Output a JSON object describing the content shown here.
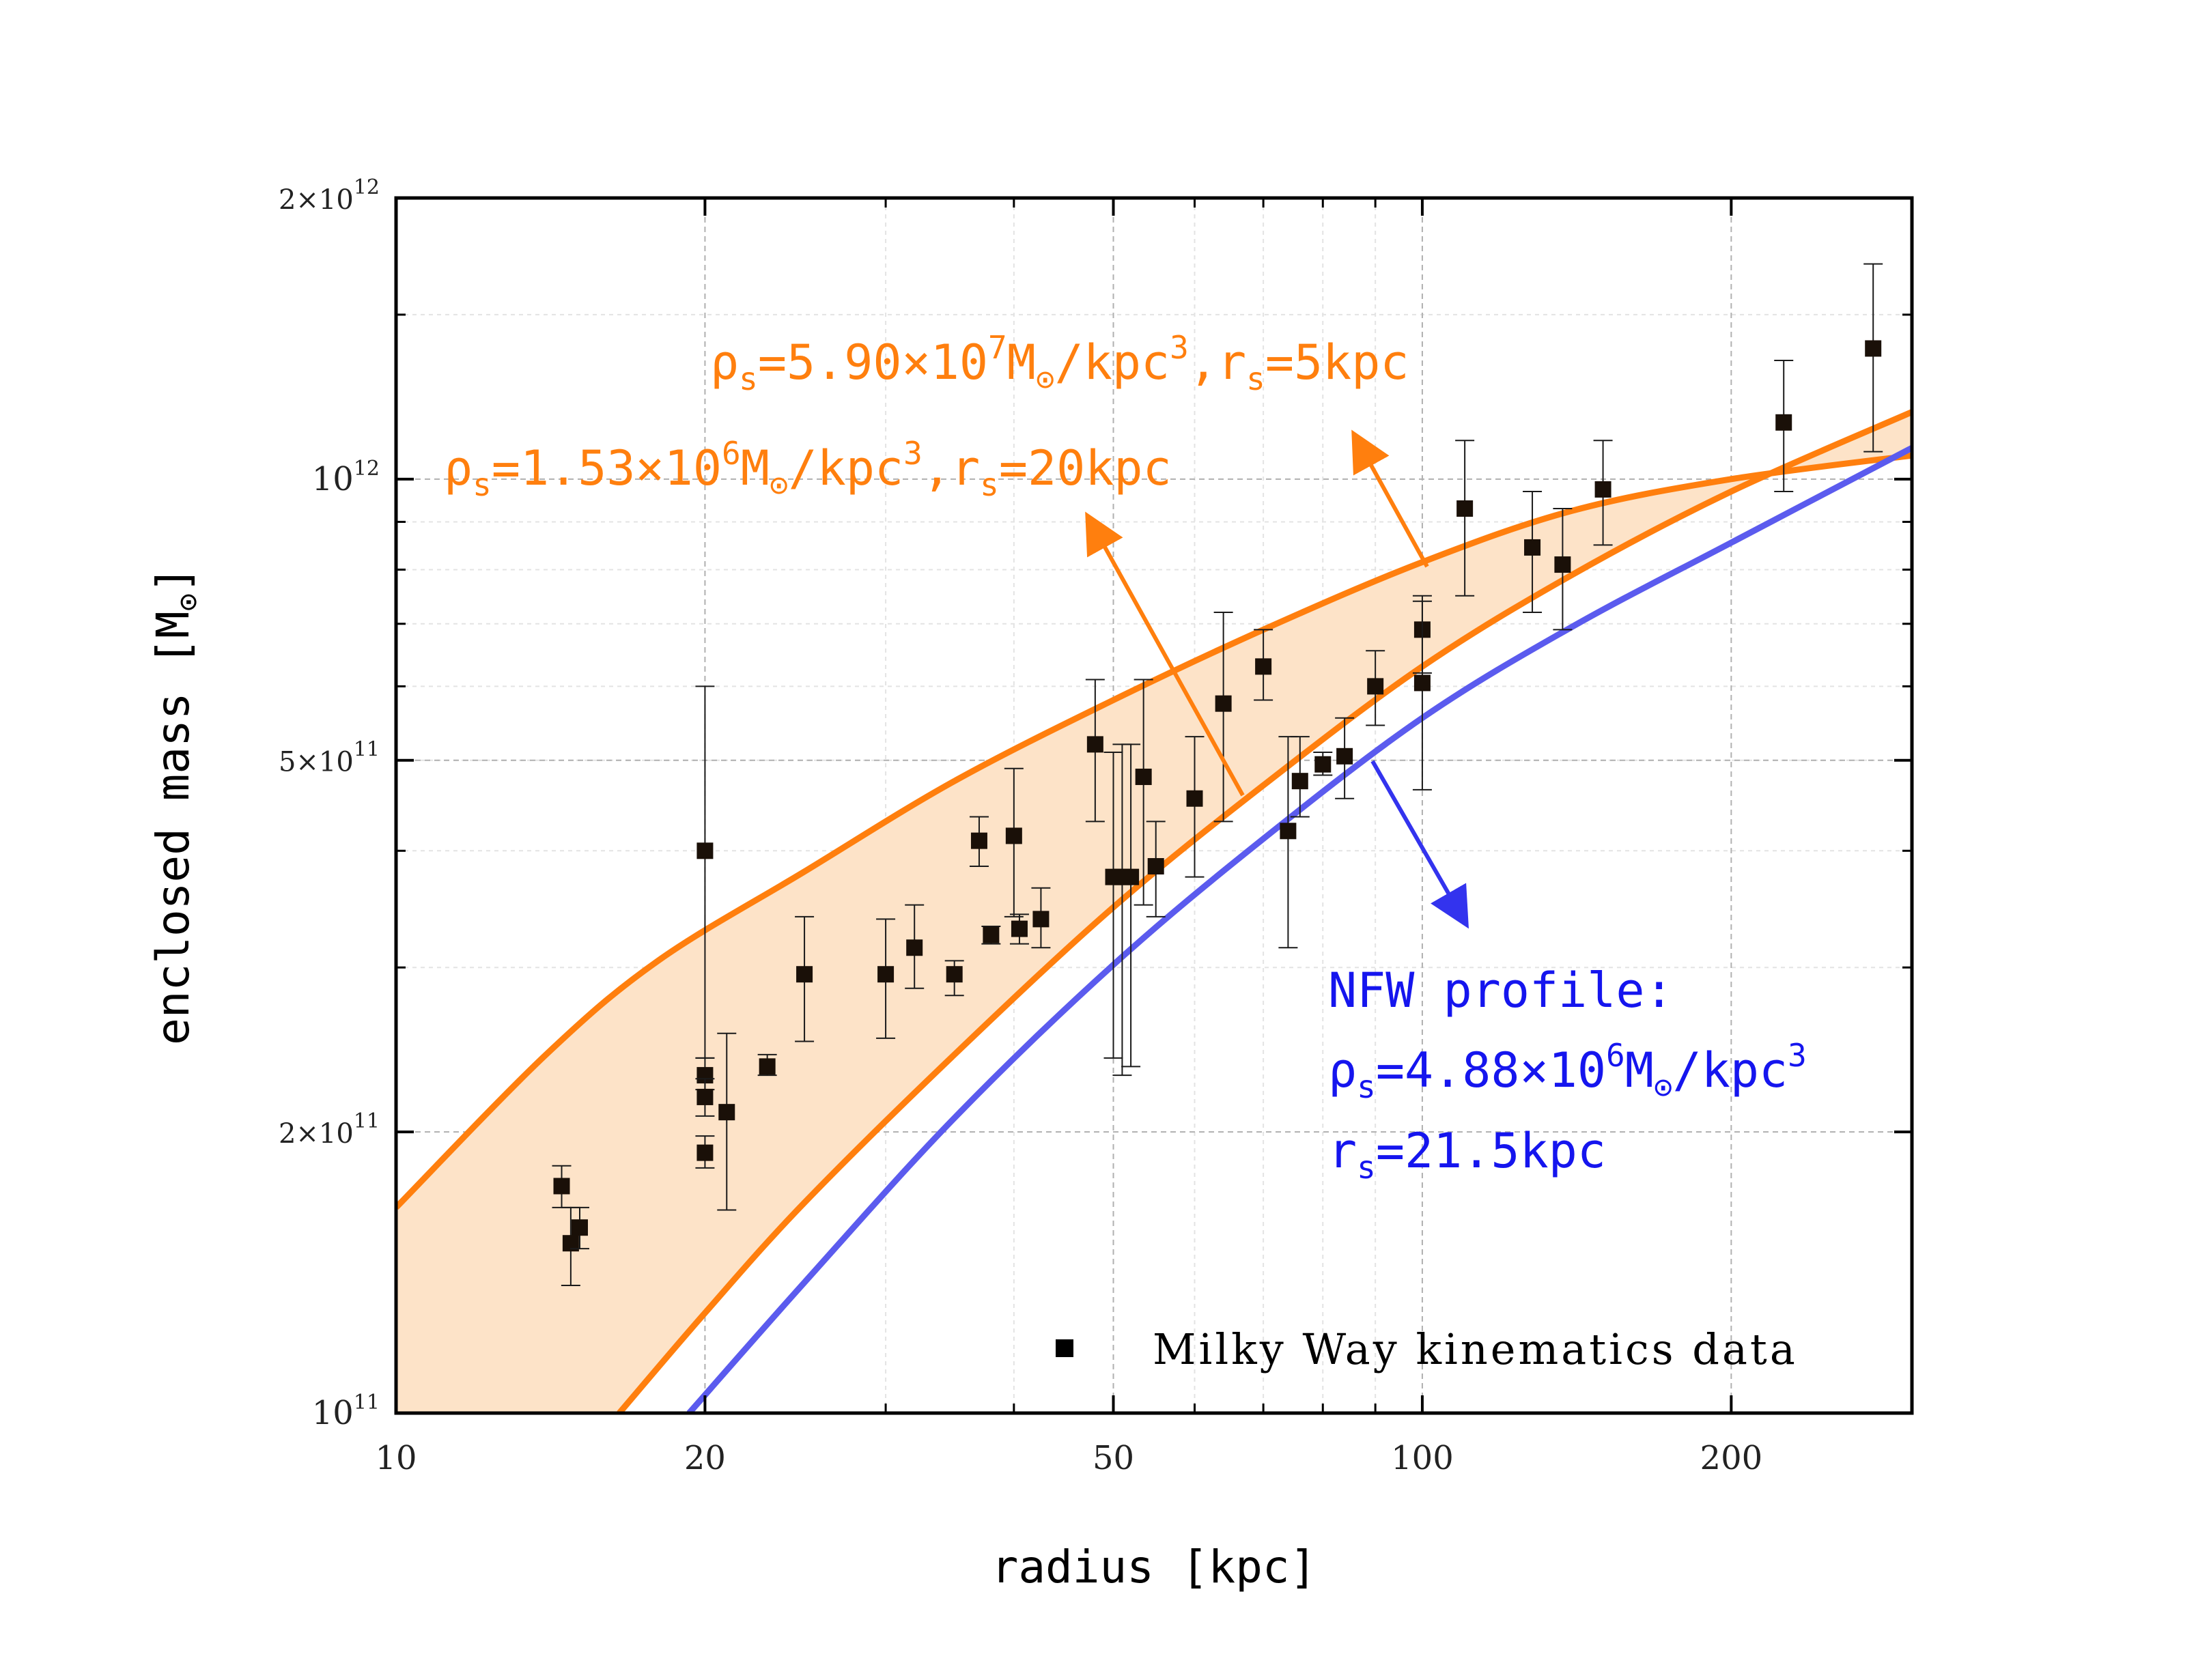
{
  "chart_data": {
    "type": "scatter",
    "xlabel": "radius [kpc]",
    "ylabel": "enclosed mass [M",
    "ylabel_unit_sub": "⊙",
    "ylabel_close": "]",
    "x_scale": "log",
    "y_scale": "log",
    "xlim": [
      10,
      300
    ],
    "ylim": [
      100000000000.0,
      2000000000000.0
    ],
    "grid": true,
    "x_ticks": [
      {
        "value": 10,
        "label": "10"
      },
      {
        "value": 20,
        "label": "20"
      },
      {
        "value": 50,
        "label": "50"
      },
      {
        "value": 100,
        "label": "100"
      },
      {
        "value": 200,
        "label": "200"
      }
    ],
    "y_ticks": [
      {
        "value": 100000000000.0,
        "mantissa": "",
        "base": "10",
        "exp": "11"
      },
      {
        "value": 200000000000.0,
        "mantissa": "2×",
        "base": "10",
        "exp": "11"
      },
      {
        "value": 500000000000.0,
        "mantissa": "5×",
        "base": "10",
        "exp": "11"
      },
      {
        "value": 1000000000000.0,
        "mantissa": "",
        "base": "10",
        "exp": "12"
      },
      {
        "value": 2000000000000.0,
        "mantissa": "2×",
        "base": "10",
        "exp": "12"
      }
    ],
    "legend": {
      "position": "bottom-right",
      "entries": [
        {
          "label": "Milky Way kinematics data",
          "marker": "square",
          "color": "#000000"
        }
      ]
    },
    "points": [
      {
        "x": 14.5,
        "y": 175000000000.0,
        "ylo": 166000000000.0,
        "yhi": 184000000000.0
      },
      {
        "x": 14.8,
        "y": 152000000000.0,
        "ylo": 137000000000.0,
        "yhi": 166000000000.0
      },
      {
        "x": 15.1,
        "y": 158000000000.0,
        "ylo": 150000000000.0,
        "yhi": 166000000000.0
      },
      {
        "x": 20.0,
        "y": 400000000000.0,
        "ylo": 240000000000.0,
        "yhi": 600000000000.0
      },
      {
        "x": 20.0,
        "y": 230000000000.0,
        "ylo": 222000000000.0,
        "yhi": 240000000000.0
      },
      {
        "x": 20.0,
        "y": 218000000000.0,
        "ylo": 208000000000.0,
        "yhi": 228000000000.0
      },
      {
        "x": 20.0,
        "y": 190000000000.0,
        "ylo": 183000000000.0,
        "yhi": 198000000000.0
      },
      {
        "x": 21.0,
        "y": 210000000000.0,
        "ylo": 165000000000.0,
        "yhi": 255000000000.0
      },
      {
        "x": 23.0,
        "y": 235000000000.0,
        "ylo": 230000000000.0,
        "yhi": 242000000000.0
      },
      {
        "x": 25.0,
        "y": 295000000000.0,
        "ylo": 250000000000.0,
        "yhi": 340000000000.0
      },
      {
        "x": 30.0,
        "y": 295000000000.0,
        "ylo": 252000000000.0,
        "yhi": 338000000000.0
      },
      {
        "x": 32.0,
        "y": 315000000000.0,
        "ylo": 285000000000.0,
        "yhi": 350000000000.0
      },
      {
        "x": 35.0,
        "y": 295000000000.0,
        "ylo": 280000000000.0,
        "yhi": 305000000000.0
      },
      {
        "x": 37.0,
        "y": 410000000000.0,
        "ylo": 385000000000.0,
        "yhi": 435000000000.0
      },
      {
        "x": 38.0,
        "y": 325000000000.0,
        "ylo": 318000000000.0,
        "yhi": 332000000000.0
      },
      {
        "x": 40.0,
        "y": 415000000000.0,
        "ylo": 340000000000.0,
        "yhi": 490000000000.0
      },
      {
        "x": 40.5,
        "y": 330000000000.0,
        "ylo": 318000000000.0,
        "yhi": 342000000000.0
      },
      {
        "x": 42.5,
        "y": 338000000000.0,
        "ylo": 315000000000.0,
        "yhi": 365000000000.0
      },
      {
        "x": 48.0,
        "y": 520000000000.0,
        "ylo": 430000000000.0,
        "yhi": 610000000000.0
      },
      {
        "x": 50.0,
        "y": 375000000000.0,
        "ylo": 240000000000.0,
        "yhi": 510000000000.0
      },
      {
        "x": 51.0,
        "y": 375000000000.0,
        "ylo": 230000000000.0,
        "yhi": 520000000000.0
      },
      {
        "x": 52.0,
        "y": 375000000000.0,
        "ylo": 235000000000.0,
        "yhi": 520000000000.0
      },
      {
        "x": 53.5,
        "y": 480000000000.0,
        "ylo": 350000000000.0,
        "yhi": 610000000000.0
      },
      {
        "x": 55.0,
        "y": 385000000000.0,
        "ylo": 340000000000.0,
        "yhi": 430000000000.0
      },
      {
        "x": 60.0,
        "y": 455000000000.0,
        "ylo": 375000000000.0,
        "yhi": 530000000000.0
      },
      {
        "x": 64.0,
        "y": 575000000000.0,
        "ylo": 430000000000.0,
        "yhi": 720000000000.0
      },
      {
        "x": 70.0,
        "y": 630000000000.0,
        "ylo": 580000000000.0,
        "yhi": 690000000000.0
      },
      {
        "x": 74.0,
        "y": 420000000000.0,
        "ylo": 315000000000.0,
        "yhi": 530000000000.0
      },
      {
        "x": 76.0,
        "y": 475000000000.0,
        "ylo": 435000000000.0,
        "yhi": 530000000000.0
      },
      {
        "x": 80.0,
        "y": 495000000000.0,
        "ylo": 482000000000.0,
        "yhi": 510000000000.0
      },
      {
        "x": 84.0,
        "y": 505000000000.0,
        "ylo": 455000000000.0,
        "yhi": 555000000000.0
      },
      {
        "x": 90.0,
        "y": 600000000000.0,
        "ylo": 545000000000.0,
        "yhi": 655000000000.0
      },
      {
        "x": 100.0,
        "y": 690000000000.0,
        "ylo": 620000000000.0,
        "yhi": 750000000000.0
      },
      {
        "x": 100.0,
        "y": 605000000000.0,
        "ylo": 465000000000.0,
        "yhi": 740000000000.0
      },
      {
        "x": 110.0,
        "y": 930000000000.0,
        "ylo": 750000000000.0,
        "yhi": 1100000000000.0
      },
      {
        "x": 128.0,
        "y": 845000000000.0,
        "ylo": 720000000000.0,
        "yhi": 970000000000.0
      },
      {
        "x": 137.0,
        "y": 810000000000.0,
        "ylo": 690000000000.0,
        "yhi": 930000000000.0
      },
      {
        "x": 150.0,
        "y": 975000000000.0,
        "ylo": 850000000000.0,
        "yhi": 1100000000000.0
      },
      {
        "x": 225.0,
        "y": 1150000000000.0,
        "ylo": 970000000000.0,
        "yhi": 1340000000000.0
      },
      {
        "x": 275.0,
        "y": 1380000000000.0,
        "ylo": 1070000000000.0,
        "yhi": 1700000000000.0
      }
    ],
    "curves": [
      {
        "id": "rs5",
        "color": "#ff7f0e",
        "x": [
          10,
          14,
          18,
          25,
          35,
          50,
          70,
          100,
          140,
          200,
          300
        ],
        "y": [
          166000000000.0,
          242000000000.0,
          305000000000.0,
          380000000000.0,
          475000000000.0,
          580000000000.0,
          690000000000.0,
          815000000000.0,
          925000000000.0,
          1000000000000.0,
          1060000000000.0
        ]
      },
      {
        "id": "rs20",
        "color": "#ff7f0e",
        "x": [
          16.5,
          20,
          25,
          35,
          50,
          70,
          100,
          140,
          200,
          300
        ],
        "y": [
          100000000000.0,
          128000000000.0,
          168000000000.0,
          242000000000.0,
          348000000000.0,
          470000000000.0,
          630000000000.0,
          790000000000.0,
          970000000000.0,
          1180000000000.0
        ]
      },
      {
        "id": "nfw",
        "color": "#5b5bee",
        "x": [
          19.3,
          25,
          35,
          50,
          70,
          100,
          140,
          200,
          300
        ],
        "y": [
          100000000000.0,
          138000000000.0,
          207000000000.0,
          302000000000.0,
          412000000000.0,
          555000000000.0,
          695000000000.0,
          855000000000.0,
          1080000000000.0
        ]
      }
    ],
    "annotations": {
      "rs5": {
        "rho": "ρ",
        "rho_sub": "s",
        "eq": "=5.90×10",
        "exp": "7",
        "unit": "M",
        "unit_sub": "⊙",
        "unit_rest": "/kpc",
        "unit_exp": "3",
        "r_sep": ",r",
        "r_sub": "s",
        "r_val": "=5kpc",
        "color": "#ff7f0e"
      },
      "rs20": {
        "rho": "ρ",
        "rho_sub": "s",
        "eq": "=1.53×10",
        "exp": "6",
        "unit": "M",
        "unit_sub": "⊙",
        "unit_rest": "/kpc",
        "unit_exp": "3",
        "r_sep": ",r",
        "r_sub": "s",
        "r_val": "=20kpc",
        "color": "#ff7f0e"
      },
      "nfw": {
        "title": "NFW profile:",
        "rho": "ρ",
        "rho_sub": "s",
        "eq": "=4.88×10",
        "exp": "6",
        "unit": "M",
        "unit_sub": "⊙",
        "unit_rest": "/kpc",
        "unit_exp": "3",
        "r": "r",
        "r_sub": "s",
        "r_val": "=21.5kpc",
        "color": "#1515ee"
      }
    },
    "band_fill_color": "#fde3c8"
  }
}
